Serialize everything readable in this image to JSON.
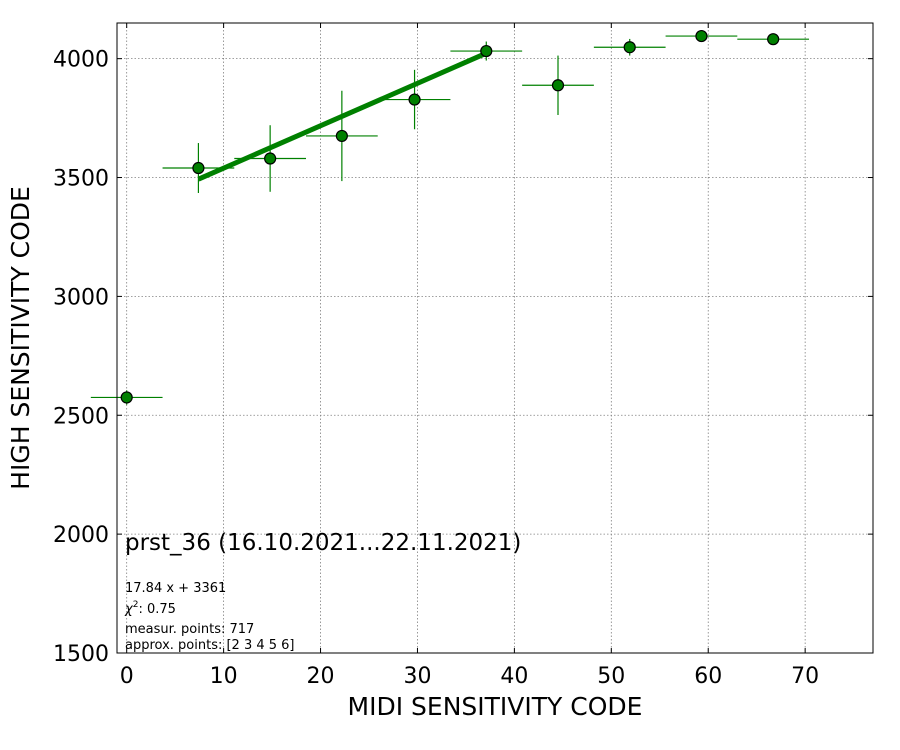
{
  "chart_data": {
    "type": "scatter",
    "xlabel": "MIDI SENSITIVITY CODE",
    "ylabel": "HIGH SENSITIVITY CODE",
    "xlim": [
      -1,
      77
    ],
    "ylim": [
      1500,
      4150
    ],
    "xticks": [
      0,
      10,
      20,
      30,
      40,
      50,
      60,
      70
    ],
    "yticks": [
      1500,
      2000,
      2500,
      3000,
      3500,
      4000
    ],
    "grid": true,
    "points": [
      {
        "x": 0.0,
        "y": 2575,
        "xerr": 3.7,
        "yerr": 30
      },
      {
        "x": 7.4,
        "y": 3540,
        "xerr": 3.7,
        "yerr": 105
      },
      {
        "x": 14.8,
        "y": 3580,
        "xerr": 3.7,
        "yerr": 140
      },
      {
        "x": 22.2,
        "y": 3675,
        "xerr": 3.7,
        "yerr": 190
      },
      {
        "x": 29.7,
        "y": 3828,
        "xerr": 3.7,
        "yerr": 125
      },
      {
        "x": 37.1,
        "y": 4032,
        "xerr": 3.7,
        "yerr": 40
      },
      {
        "x": 44.5,
        "y": 3888,
        "xerr": 3.7,
        "yerr": 125
      },
      {
        "x": 51.9,
        "y": 4048,
        "xerr": 3.7,
        "yerr": 35
      },
      {
        "x": 59.3,
        "y": 4095,
        "xerr": 3.7,
        "yerr": 15
      },
      {
        "x": 66.7,
        "y": 4082,
        "xerr": 3.7,
        "yerr": 12
      }
    ],
    "fit_line": {
      "slope": 17.84,
      "intercept": 3361,
      "x_range": [
        7.4,
        37.1
      ]
    },
    "colors": {
      "marker_face": "#008000",
      "marker_edge": "#000000",
      "errorbar": "#008000",
      "fit_line": "#008000",
      "grid": "#808080"
    },
    "annotations": {
      "title": "prst_36 (16.10.2021...22.11.2021)",
      "equation": "17.84 x + 3361",
      "chi2_label": "χ",
      "chi2_sup": "2",
      "chi2_value": ": 0.75",
      "measur_points": "measur. points: 717",
      "approx_points": "approx. points: [2 3 4 5 6]"
    }
  }
}
